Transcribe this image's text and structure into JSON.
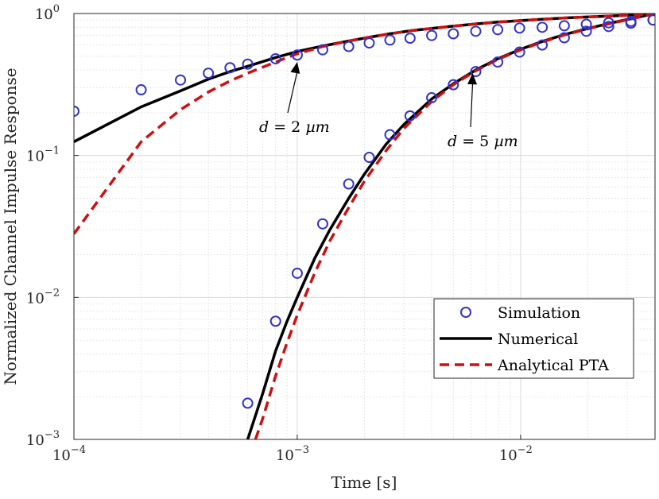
{
  "chart_data": {
    "type": "line",
    "title": "",
    "xlabel": "Time [s]",
    "ylabel": "Normalized Channel Impulse Response",
    "xscale": "log",
    "yscale": "log",
    "xlim": [
      0.0001,
      0.04
    ],
    "ylim": [
      0.001,
      1
    ],
    "grid": true,
    "minor_grid": true,
    "x_ticks": [
      {
        "value": 0.0001,
        "base": "10",
        "exp": "−4"
      },
      {
        "value": 0.001,
        "base": "10",
        "exp": "−3"
      },
      {
        "value": 0.01,
        "base": "10",
        "exp": "−2"
      }
    ],
    "y_ticks": [
      {
        "value": 0.001,
        "base": "10",
        "exp": "−3"
      },
      {
        "value": 0.01,
        "base": "10",
        "exp": "−2"
      },
      {
        "value": 0.1,
        "base": "10",
        "exp": "−1"
      },
      {
        "value": 1,
        "base": "10",
        "exp": "0"
      }
    ],
    "legend": {
      "position": "bottom-right",
      "entries": [
        "Simulation",
        "Numerical",
        "Analytical PTA"
      ]
    },
    "colors": {
      "simulation": "#3333cc",
      "numerical": "#000000",
      "analytical": "#cc1111",
      "grid": "#d9d9d9"
    },
    "series": [
      {
        "name": "Simulation",
        "group": "d = 2 µm",
        "style": "markers",
        "x": [
          0.0001,
          0.0002,
          0.0003,
          0.0004,
          0.0005,
          0.0006,
          0.0008,
          0.001,
          0.0013,
          0.0017,
          0.0021,
          0.0026,
          0.0032,
          0.004,
          0.005,
          0.0063,
          0.0079,
          0.0099,
          0.0125,
          0.0157,
          0.0197,
          0.0248,
          0.0312,
          0.0392
        ],
        "y": [
          0.205,
          0.29,
          0.34,
          0.38,
          0.415,
          0.44,
          0.48,
          0.51,
          0.555,
          0.585,
          0.62,
          0.65,
          0.67,
          0.7,
          0.72,
          0.75,
          0.77,
          0.79,
          0.8,
          0.82,
          0.84,
          0.86,
          0.88,
          0.9
        ]
      },
      {
        "name": "Numerical",
        "group": "d = 2 µm",
        "style": "solid",
        "x": [
          0.0001,
          0.0002,
          0.0003,
          0.0004,
          0.0005,
          0.0006,
          0.0008,
          0.001,
          0.0013,
          0.0017,
          0.0021,
          0.0026,
          0.0032,
          0.004,
          0.005,
          0.0063,
          0.0079,
          0.0099,
          0.0125,
          0.0157,
          0.0197,
          0.0248,
          0.0312,
          0.04
        ],
        "y": [
          0.125,
          0.22,
          0.285,
          0.345,
          0.39,
          0.425,
          0.49,
          0.54,
          0.59,
          0.64,
          0.68,
          0.72,
          0.755,
          0.785,
          0.815,
          0.845,
          0.87,
          0.89,
          0.91,
          0.93,
          0.945,
          0.96,
          0.975,
          1.0
        ]
      },
      {
        "name": "Analytical PTA",
        "group": "d = 2 µm",
        "style": "dashed",
        "x": [
          0.0001,
          0.0002,
          0.0003,
          0.0004,
          0.0005,
          0.0006,
          0.0008,
          0.001,
          0.0013,
          0.0017,
          0.0021,
          0.0026,
          0.0032,
          0.004,
          0.005,
          0.0063,
          0.0079,
          0.0099,
          0.0125,
          0.0157,
          0.0197,
          0.0248,
          0.0312,
          0.04
        ],
        "y": [
          0.028,
          0.125,
          0.21,
          0.28,
          0.335,
          0.38,
          0.455,
          0.52,
          0.585,
          0.64,
          0.68,
          0.72,
          0.755,
          0.785,
          0.815,
          0.845,
          0.87,
          0.89,
          0.91,
          0.93,
          0.945,
          0.96,
          0.975,
          1.0
        ]
      },
      {
        "name": "Simulation",
        "group": "d = 5 µm",
        "style": "markers",
        "x": [
          0.0006,
          0.0008,
          0.001,
          0.0013,
          0.0017,
          0.0021,
          0.0026,
          0.0032,
          0.004,
          0.005,
          0.0063,
          0.0079,
          0.0099,
          0.0125,
          0.0157,
          0.0197,
          0.0248,
          0.0312,
          0.0392
        ],
        "y": [
          0.0018,
          0.0068,
          0.0148,
          0.033,
          0.063,
          0.097,
          0.14,
          0.19,
          0.255,
          0.315,
          0.39,
          0.455,
          0.535,
          0.6,
          0.675,
          0.75,
          0.81,
          0.855,
          0.9
        ]
      },
      {
        "name": "Numerical",
        "group": "d = 5 µm",
        "style": "solid",
        "x": [
          0.0006,
          0.0007,
          0.0008,
          0.0009,
          0.001,
          0.0012,
          0.0014,
          0.0017,
          0.002,
          0.0025,
          0.003,
          0.004,
          0.005,
          0.0063,
          0.0079,
          0.01,
          0.0125,
          0.0157,
          0.0197,
          0.0248,
          0.0312,
          0.04
        ],
        "y": [
          0.001,
          0.0021,
          0.0042,
          0.0068,
          0.01,
          0.019,
          0.03,
          0.05,
          0.074,
          0.12,
          0.165,
          0.25,
          0.32,
          0.4,
          0.48,
          0.56,
          0.635,
          0.71,
          0.78,
          0.85,
          0.92,
          1.0
        ]
      },
      {
        "name": "Analytical PTA",
        "group": "d = 5 µm",
        "style": "dashed",
        "x": [
          0.00065,
          0.0007,
          0.0008,
          0.0009,
          0.001,
          0.0012,
          0.0014,
          0.0017,
          0.002,
          0.0025,
          0.003,
          0.004,
          0.005,
          0.0063,
          0.0079,
          0.01,
          0.0125,
          0.0157,
          0.0197,
          0.0248,
          0.0312,
          0.04
        ],
        "y": [
          0.001,
          0.0014,
          0.0028,
          0.0048,
          0.0075,
          0.015,
          0.025,
          0.043,
          0.066,
          0.108,
          0.155,
          0.24,
          0.315,
          0.395,
          0.475,
          0.555,
          0.63,
          0.705,
          0.775,
          0.845,
          0.915,
          1.0
        ]
      }
    ],
    "annotations": [
      {
        "text": "d = 2 µm",
        "var": "d",
        "eq": "=",
        "value": "2",
        "unit": "µm",
        "arrow_to": {
          "x": 0.001,
          "y": 0.48
        }
      },
      {
        "text": "d = 5 µm",
        "var": "d",
        "eq": "=",
        "value": "5",
        "unit": "µm",
        "arrow_to": {
          "x": 0.0061,
          "y": 0.4
        }
      }
    ]
  }
}
